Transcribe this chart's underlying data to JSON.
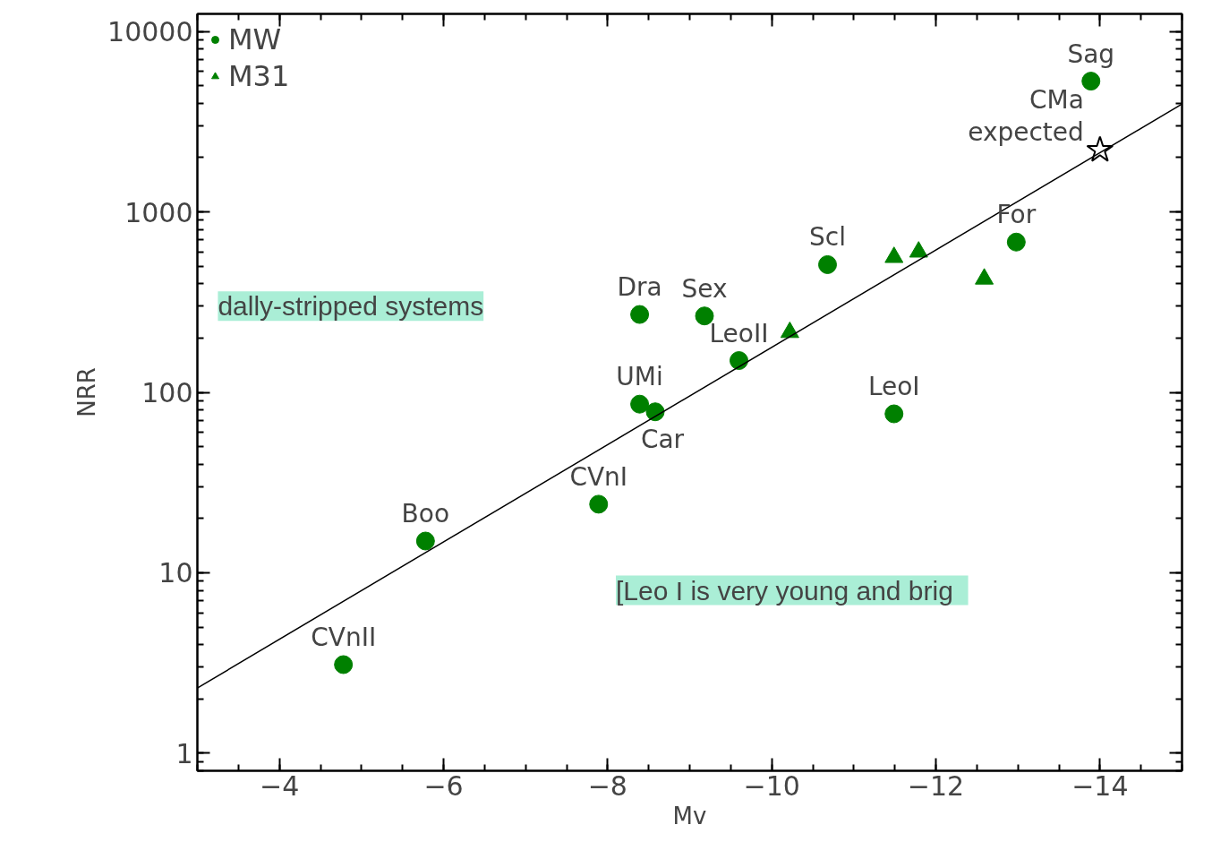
{
  "chart_data": {
    "type": "scatter",
    "xlabel": "Mv",
    "ylabel": "NRR",
    "xlim": [
      -3,
      -15
    ],
    "ylim": [
      0.8,
      12500
    ],
    "log": "y",
    "xticks": [
      {
        "value": -4,
        "label": "−4"
      },
      {
        "value": -6,
        "label": "−6"
      },
      {
        "value": -8,
        "label": "−8"
      },
      {
        "value": -10,
        "label": "−10"
      },
      {
        "value": -12,
        "label": "−12"
      },
      {
        "value": -14,
        "label": "−14"
      }
    ],
    "yticks": [
      1,
      10,
      100,
      1000,
      10000
    ],
    "grid": false,
    "legend": "top left",
    "series": [
      {
        "name": "MW",
        "color": "#008000",
        "marker": "circle",
        "x": [
          -4.78,
          -5.78,
          -7.89,
          -8.39,
          -8.58,
          -8.39,
          -9.18,
          -9.6,
          -10.68,
          -11.49,
          -12.98,
          -13.89
        ],
        "values": [
          3.1,
          15,
          24,
          86,
          78,
          270,
          265,
          150,
          510,
          76,
          680,
          5300
        ]
      },
      {
        "name": "M31",
        "color": "#008000",
        "marker": "triangle",
        "x": [
          -10.22,
          -11.49,
          -11.79,
          -12.59
        ],
        "values": [
          215,
          560,
          600,
          425
        ]
      },
      {
        "color": "#000000",
        "marker": "star",
        "x": [
          -14
        ],
        "values": [
          2200
        ]
      },
      {
        "type": "line",
        "color": "#000000",
        "x": [
          -3,
          -15
        ],
        "values": [
          2.3,
          3960
        ]
      }
    ],
    "annotations": [
      {
        "text": "CVnII",
        "x": -4.78,
        "y": 3.1
      },
      {
        "text": "Boo",
        "x": -5.78,
        "y": 15
      },
      {
        "text": "CVnI",
        "x": -7.89,
        "y": 24
      },
      {
        "text": "UMi",
        "x": -8.39,
        "y": 86
      },
      {
        "text": "Car",
        "x": -8.58,
        "y": 78
      },
      {
        "text": "Dra",
        "x": -8.39,
        "y": 270
      },
      {
        "text": "Sex",
        "x": -9.18,
        "y": 265
      },
      {
        "text": "LeoII",
        "x": -9.6,
        "y": 150
      },
      {
        "text": "Scl",
        "x": -10.68,
        "y": 510
      },
      {
        "text": "LeoI",
        "x": -11.49,
        "y": 76
      },
      {
        "text": "For",
        "x": -12.98,
        "y": 680
      },
      {
        "text": "Sag",
        "x": -13.89,
        "y": 5300
      },
      {
        "text": "expected",
        "x": -14,
        "y": 2200
      },
      {
        "text": "CMa",
        "x": -14,
        "y": 2200
      },
      "dally-stripped systems",
      "[Leo I   is very young and brig"
    ]
  }
}
